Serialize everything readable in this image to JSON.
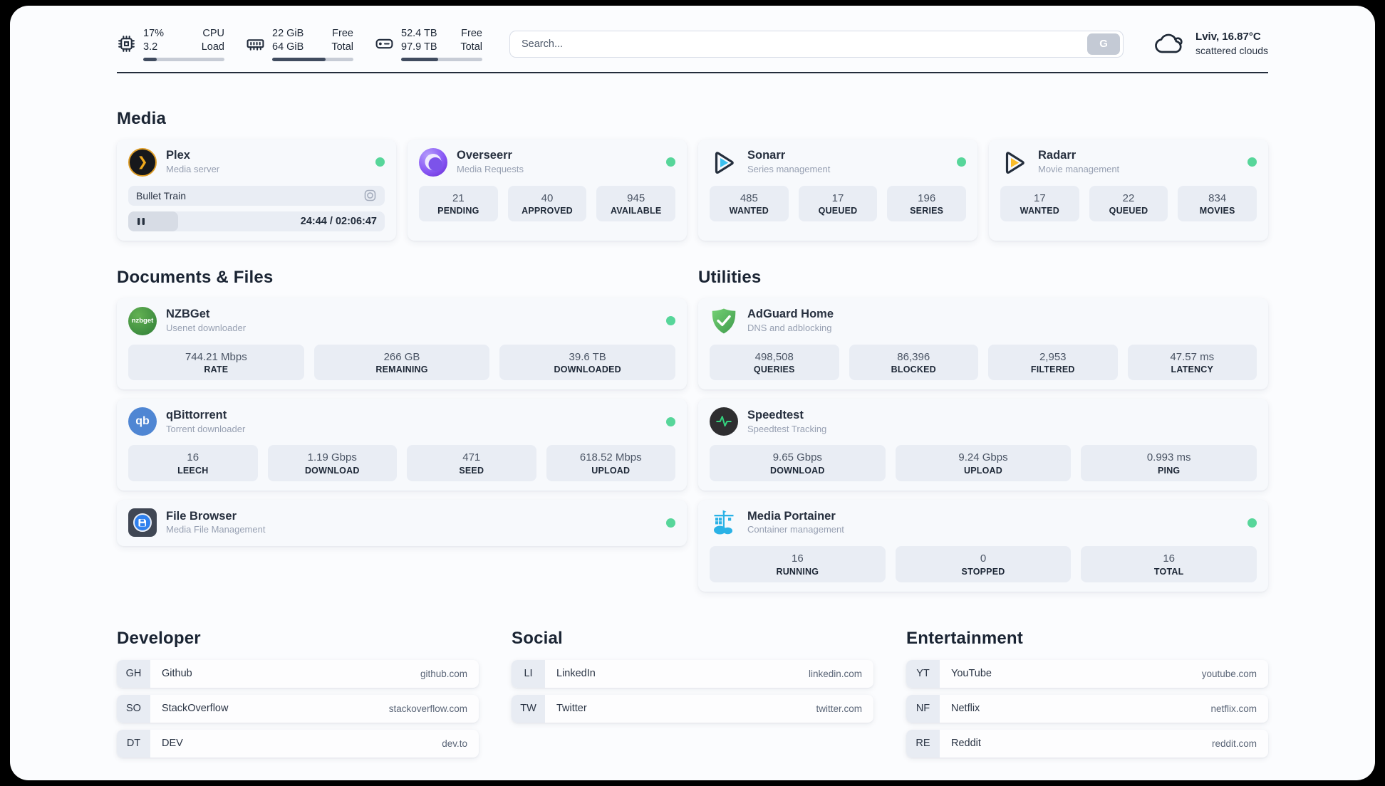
{
  "colors": {
    "status_green": "#57d69a",
    "panel_bg": "#fbfcfe",
    "card_bg": "#f7f9fc",
    "stat_bg": "#e9edf4",
    "text_primary": "#1d2736",
    "text_secondary": "#97a0b2",
    "progress_fill": "#404b5f"
  },
  "topbar": {
    "cpu": {
      "values": [
        "17%",
        "3.2"
      ],
      "labels": [
        "CPU",
        "Load"
      ],
      "progress_pct": 17
    },
    "ram": {
      "values": [
        "22 GiB",
        "64 GiB"
      ],
      "labels": [
        "Free",
        "Total"
      ],
      "progress_pct": 66
    },
    "disk": {
      "values": [
        "52.4 TB",
        "97.9 TB"
      ],
      "labels": [
        "Free",
        "Total"
      ],
      "progress_pct": 46
    },
    "search": {
      "placeholder": "Search...",
      "button_label": "G"
    },
    "weather": {
      "location_temp": "Lviv, 16.87°C",
      "condition": "scattered clouds"
    }
  },
  "sections": {
    "media": "Media",
    "documents": "Documents & Files",
    "utilities": "Utilities",
    "developer": "Developer",
    "social": "Social",
    "entertainment": "Entertainment"
  },
  "apps": {
    "plex": {
      "title": "Plex",
      "subtitle": "Media server",
      "online": true,
      "now_playing": "Bullet Train",
      "time_display": "24:44 / 02:06:47",
      "progress_pct": 19.5
    },
    "overseerr": {
      "title": "Overseerr",
      "subtitle": "Media Requests",
      "online": true,
      "stats": [
        {
          "value": "21",
          "label": "PENDING"
        },
        {
          "value": "40",
          "label": "APPROVED"
        },
        {
          "value": "945",
          "label": "AVAILABLE"
        }
      ]
    },
    "sonarr": {
      "title": "Sonarr",
      "subtitle": "Series management",
      "online": true,
      "stats": [
        {
          "value": "485",
          "label": "WANTED"
        },
        {
          "value": "17",
          "label": "QUEUED"
        },
        {
          "value": "196",
          "label": "SERIES"
        }
      ]
    },
    "radarr": {
      "title": "Radarr",
      "subtitle": "Movie management",
      "online": true,
      "stats": [
        {
          "value": "17",
          "label": "WANTED"
        },
        {
          "value": "22",
          "label": "QUEUED"
        },
        {
          "value": "834",
          "label": "MOVIES"
        }
      ]
    },
    "nzbget": {
      "title": "NZBGet",
      "subtitle": "Usenet downloader",
      "online": true,
      "icon_text": "nzbget",
      "stats": [
        {
          "value": "744.21 Mbps",
          "label": "RATE"
        },
        {
          "value": "266 GB",
          "label": "REMAINING"
        },
        {
          "value": "39.6 TB",
          "label": "DOWNLOADED"
        }
      ]
    },
    "qbittorrent": {
      "title": "qBittorrent",
      "subtitle": "Torrent downloader",
      "online": true,
      "icon_text": "qb",
      "stats": [
        {
          "value": "16",
          "label": "LEECH"
        },
        {
          "value": "1.19 Gbps",
          "label": "DOWNLOAD"
        },
        {
          "value": "471",
          "label": "SEED"
        },
        {
          "value": "618.52 Mbps",
          "label": "UPLOAD"
        }
      ]
    },
    "filebrowser": {
      "title": "File Browser",
      "subtitle": "Media File Management",
      "online": true
    },
    "adguard": {
      "title": "AdGuard Home",
      "subtitle": "DNS and adblocking",
      "stats": [
        {
          "value": "498,508",
          "label": "QUERIES"
        },
        {
          "value": "86,396",
          "label": "BLOCKED"
        },
        {
          "value": "2,953",
          "label": "FILTERED"
        },
        {
          "value": "47.57 ms",
          "label": "LATENCY"
        }
      ]
    },
    "speedtest": {
      "title": "Speedtest",
      "subtitle": "Speedtest Tracking",
      "stats": [
        {
          "value": "9.65 Gbps",
          "label": "DOWNLOAD"
        },
        {
          "value": "9.24 Gbps",
          "label": "UPLOAD"
        },
        {
          "value": "0.993 ms",
          "label": "PING"
        }
      ]
    },
    "portainer": {
      "title": "Media Portainer",
      "subtitle": "Container management",
      "online": true,
      "stats": [
        {
          "value": "16",
          "label": "RUNNING"
        },
        {
          "value": "0",
          "label": "STOPPED"
        },
        {
          "value": "16",
          "label": "TOTAL"
        }
      ]
    }
  },
  "links": {
    "developer": [
      {
        "badge": "GH",
        "name": "Github",
        "url": "github.com"
      },
      {
        "badge": "SO",
        "name": "StackOverflow",
        "url": "stackoverflow.com"
      },
      {
        "badge": "DT",
        "name": "DEV",
        "url": "dev.to"
      }
    ],
    "social": [
      {
        "badge": "LI",
        "name": "LinkedIn",
        "url": "linkedin.com"
      },
      {
        "badge": "TW",
        "name": "Twitter",
        "url": "twitter.com"
      }
    ],
    "entertainment": [
      {
        "badge": "YT",
        "name": "YouTube",
        "url": "youtube.com"
      },
      {
        "badge": "NF",
        "name": "Netflix",
        "url": "netflix.com"
      },
      {
        "badge": "RE",
        "name": "Reddit",
        "url": "reddit.com"
      }
    ]
  }
}
